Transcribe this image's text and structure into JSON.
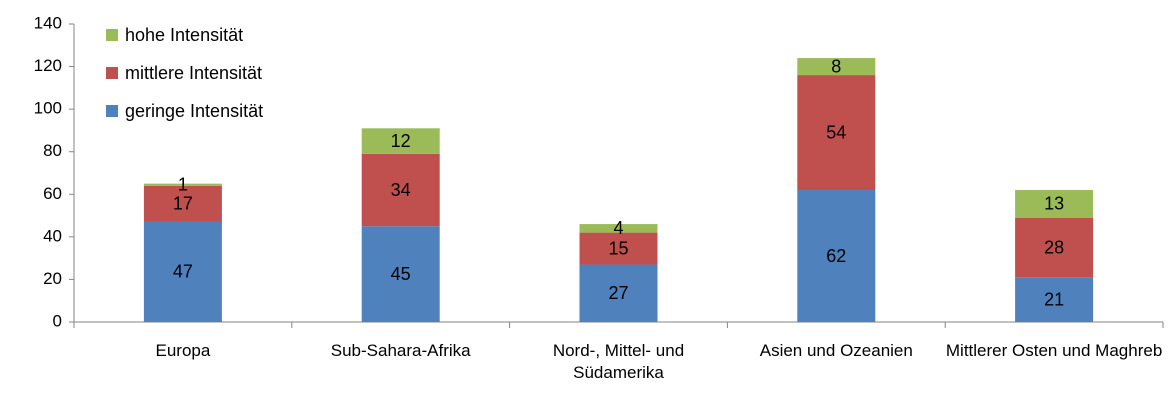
{
  "chart_data": {
    "type": "stacked_bar",
    "categories": [
      "Europa",
      "Sub-Sahara-Afrika",
      "Nord-, Mittel- und Südamerika",
      "Asien und Ozeanien",
      "Mittlerer Osten und Maghreb"
    ],
    "series": [
      {
        "name": "geringe Intensität",
        "color": "#4f81bd",
        "values": [
          47,
          45,
          27,
          62,
          21
        ]
      },
      {
        "name": "mittlere Intensität",
        "color": "#c0504d",
        "values": [
          17,
          34,
          15,
          54,
          28
        ]
      },
      {
        "name": "hohe Intensität",
        "color": "#9bbb59",
        "values": [
          1,
          12,
          4,
          8,
          13
        ]
      }
    ],
    "ylim": [
      0,
      140
    ],
    "yticks": [
      0,
      20,
      40,
      60,
      80,
      100,
      120,
      140
    ],
    "grid": false,
    "legend": "upper left"
  }
}
